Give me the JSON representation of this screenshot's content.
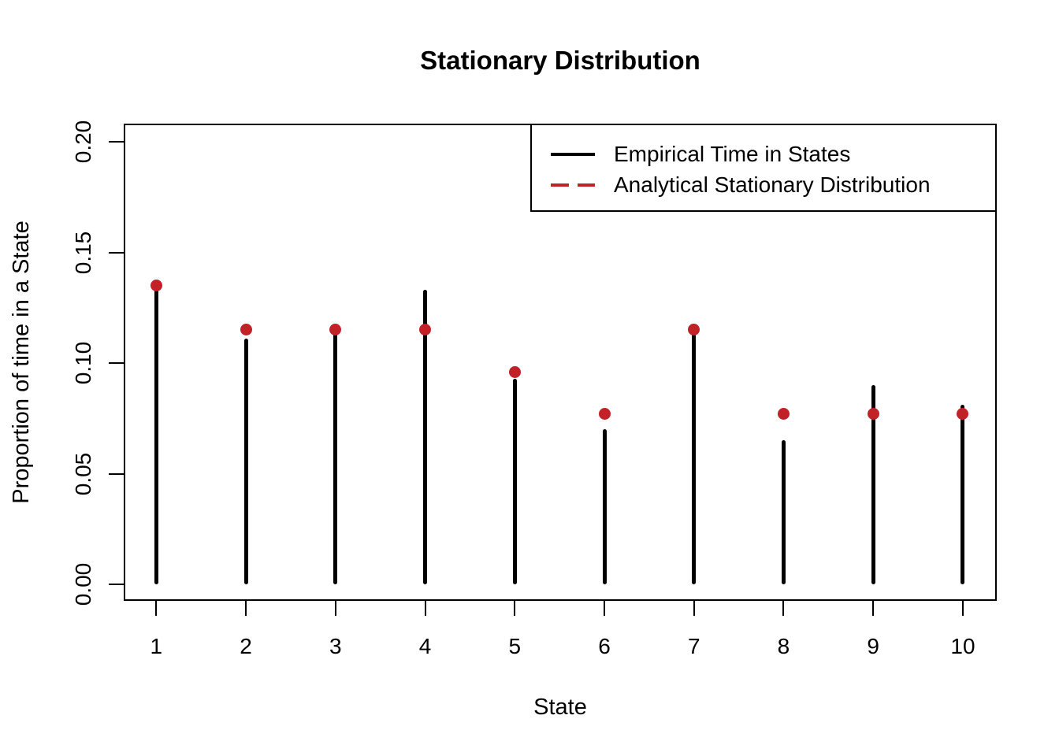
{
  "title": "Stationary Distribution",
  "chart_data": {
    "type": "bar",
    "subtype": "stem-plot-with-points",
    "title": "Stationary Distribution",
    "xlabel": "State",
    "ylabel": "Proportion of time in a State",
    "categories": [
      "1",
      "2",
      "3",
      "4",
      "5",
      "6",
      "7",
      "8",
      "9",
      "10"
    ],
    "series": [
      {
        "name": "Empirical Time in States",
        "mark": "stem",
        "color": "#000000",
        "values": [
          0.133,
          0.111,
          0.114,
          0.133,
          0.093,
          0.07,
          0.113,
          0.065,
          0.09,
          0.081
        ]
      },
      {
        "name": "Analytical Stationary Distribution",
        "mark": "point",
        "color": "#C22128",
        "values": [
          0.135,
          0.115,
          0.115,
          0.115,
          0.096,
          0.077,
          0.115,
          0.077,
          0.077,
          0.077
        ]
      }
    ],
    "y_axis": {
      "ticks": [
        0,
        0.05,
        0.1,
        0.15,
        0.2
      ],
      "tick_labels": [
        "0.00",
        "0.05",
        "0.10",
        "0.15",
        "0.20"
      ],
      "lim": [
        -0.008,
        0.208
      ]
    },
    "x_axis": {
      "tick_labels": [
        "1",
        "2",
        "3",
        "4",
        "5",
        "6",
        "7",
        "8",
        "9",
        "10"
      ]
    },
    "grid": false,
    "legend": {
      "position": "top-right",
      "entries": [
        {
          "label": "Empirical Time in States",
          "line": "solid",
          "color": "#000000"
        },
        {
          "label": "Analytical Stationary Distribution",
          "line": "dashed",
          "color": "#C22128"
        }
      ]
    }
  }
}
